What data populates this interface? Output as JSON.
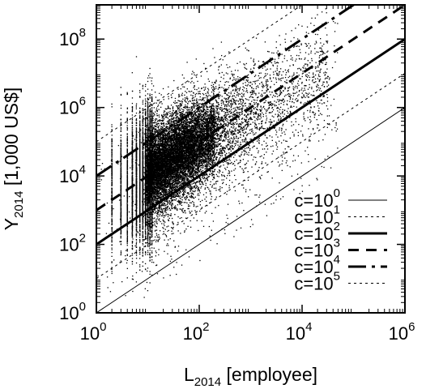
{
  "chart_data": {
    "type": "scatter",
    "title": "",
    "xlabel": {
      "base": "L",
      "sub": "2014",
      "rest": " [employee]"
    },
    "ylabel": {
      "base": "Y",
      "sub": "2014",
      "rest": " [1,000 US$]"
    },
    "x_scale": "log",
    "y_scale": "log",
    "xlim": [
      1,
      1000000
    ],
    "ylim": [
      1,
      1000000000
    ],
    "grid": false,
    "legend_position": "bottom-right",
    "x_ticks": [
      {
        "value": 1,
        "base": "10",
        "exp": "0"
      },
      {
        "value": 100,
        "base": "10",
        "exp": "2"
      },
      {
        "value": 10000,
        "base": "10",
        "exp": "4"
      },
      {
        "value": 1000000,
        "base": "10",
        "exp": "6"
      }
    ],
    "y_ticks": [
      {
        "value": 1,
        "base": "10",
        "exp": "0"
      },
      {
        "value": 100,
        "base": "10",
        "exp": "2"
      },
      {
        "value": 10000,
        "base": "10",
        "exp": "4"
      },
      {
        "value": 1000000,
        "base": "10",
        "exp": "6"
      },
      {
        "value": 100000000,
        "base": "10",
        "exp": "8"
      }
    ],
    "reference_lines": [
      {
        "base": "c=10",
        "exp": "0",
        "c": 1,
        "style": "solid-thin"
      },
      {
        "base": "c=10",
        "exp": "1",
        "c": 10,
        "style": "dotted-thin"
      },
      {
        "base": "c=10",
        "exp": "2",
        "c": 100,
        "style": "solid-thick"
      },
      {
        "base": "c=10",
        "exp": "3",
        "c": 1000,
        "style": "dashed-thick"
      },
      {
        "base": "c=10",
        "exp": "4",
        "c": 10000,
        "style": "dashdot-thick"
      },
      {
        "base": "c=10",
        "exp": "5",
        "c": 100000,
        "style": "dotted-thin"
      }
    ],
    "scatter_cloud": {
      "description_points": [
        {
          "x": 10,
          "y": 10000
        },
        {
          "x": 100,
          "y": 100000
        },
        {
          "x": 1000,
          "y": 1000000
        },
        {
          "x": 10000,
          "y": 10000000
        }
      ],
      "x_range": [
        1,
        50000
      ],
      "y_range": [
        10,
        50000000
      ]
    },
    "colors": {
      "marks": "#000000",
      "background": "#ffffff"
    }
  }
}
